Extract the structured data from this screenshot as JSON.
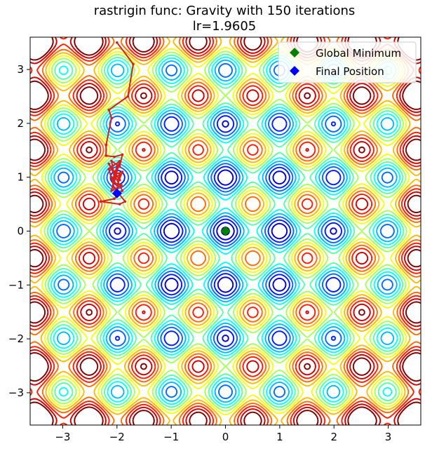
{
  "chart_data": {
    "type": "contour",
    "title_lines": [
      "rastrigin func: Gravity with 150 iterations",
      "lr=1.9605"
    ],
    "xlabel": "",
    "ylabel": "",
    "xlim": [
      -3.6,
      3.6
    ],
    "ylim": [
      -3.6,
      3.6
    ],
    "x_ticks": [
      -3,
      -2,
      -1,
      0,
      1,
      2,
      3
    ],
    "y_ticks": [
      -3,
      -2,
      -1,
      0,
      1,
      2,
      3
    ],
    "x_tick_labels": [
      "−3",
      "−2",
      "−1",
      "0",
      "1",
      "2",
      "3"
    ],
    "y_tick_labels": [
      "−3",
      "−2",
      "−1",
      "0",
      "1",
      "2",
      "3"
    ],
    "grid": false,
    "legend_position": "top-right",
    "colormap": "jet",
    "legend": [
      {
        "label": "Global Minimum",
        "marker": "diamond",
        "color": "#008000"
      },
      {
        "label": "Final Position",
        "marker": "diamond",
        "color": "#0000ff"
      }
    ],
    "global_minimum": {
      "x": 0.0,
      "y": 0.0
    },
    "final_position": {
      "x": -2.0,
      "y": 0.7
    },
    "trajectory": {
      "color": "#d62020",
      "points": [
        [
          -2.0,
          3.5
        ],
        [
          -1.7,
          3.1
        ],
        [
          -1.8,
          2.5
        ],
        [
          -2.15,
          2.25
        ],
        [
          -2.1,
          2.1
        ],
        [
          -2.2,
          1.6
        ],
        [
          -2.2,
          1.4
        ],
        [
          -2.05,
          1.38
        ],
        [
          -1.9,
          1.42
        ],
        [
          -1.95,
          1.2
        ],
        [
          -2.1,
          1.3
        ],
        [
          -2.05,
          1.05
        ],
        [
          -1.9,
          1.1
        ],
        [
          -2.0,
          0.85
        ],
        [
          -2.1,
          1.0
        ],
        [
          -1.95,
          0.95
        ],
        [
          -2.15,
          1.25
        ],
        [
          -1.9,
          0.75
        ],
        [
          -2.05,
          0.6
        ],
        [
          -2.3,
          0.55
        ],
        [
          -1.95,
          0.5
        ],
        [
          -1.85,
          0.55
        ],
        [
          -2.05,
          0.8
        ],
        [
          -2.15,
          1.15
        ],
        [
          -1.95,
          1.3
        ],
        [
          -2.05,
          0.9
        ],
        [
          -1.92,
          0.85
        ],
        [
          -2.1,
          0.75
        ],
        [
          -2.0,
          1.2
        ],
        [
          -2.08,
          0.95
        ],
        [
          -1.95,
          1.05
        ],
        [
          -2.0,
          0.7
        ]
      ]
    }
  }
}
